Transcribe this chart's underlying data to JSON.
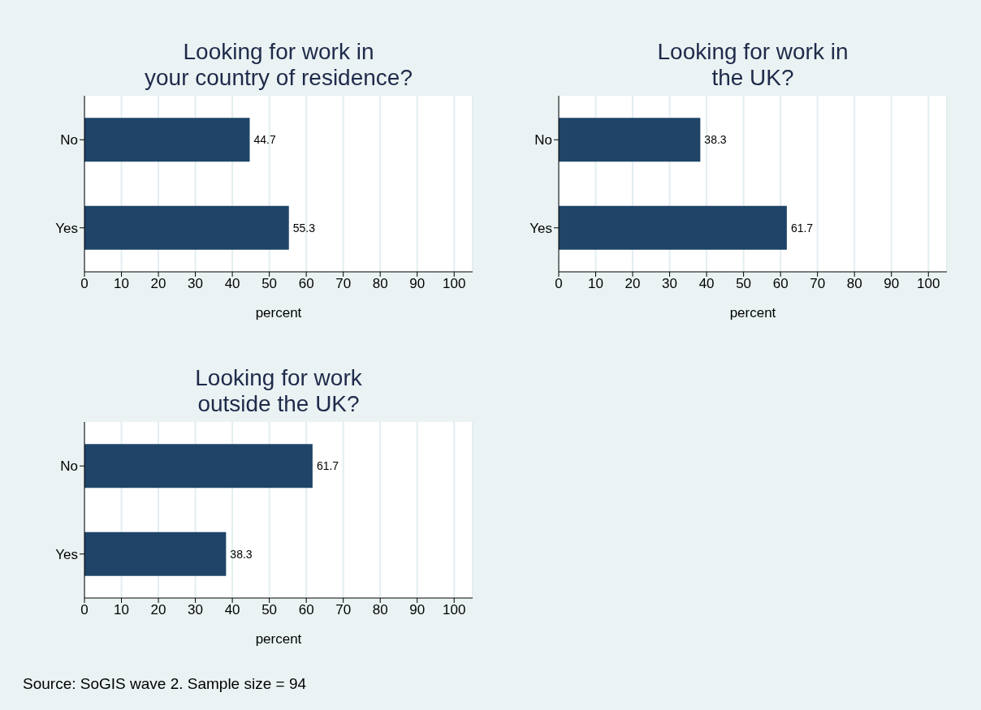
{
  "chart_data": [
    {
      "type": "bar",
      "orientation": "horizontal",
      "title": "Looking for work in\nyour country of residence?",
      "xlabel": "percent",
      "categories": [
        "No",
        "Yes"
      ],
      "values": [
        44.7,
        55.3
      ],
      "color": "#1f4468",
      "xlim": [
        0,
        105
      ],
      "xticks": [
        0,
        10,
        20,
        30,
        40,
        50,
        60,
        70,
        80,
        90,
        100
      ],
      "grid": "x",
      "data_labels": true
    },
    {
      "type": "bar",
      "orientation": "horizontal",
      "title": "Looking for work in\nthe UK?",
      "xlabel": "percent",
      "categories": [
        "No",
        "Yes"
      ],
      "values": [
        38.3,
        61.7
      ],
      "color": "#1f4468",
      "xlim": [
        0,
        105
      ],
      "xticks": [
        0,
        10,
        20,
        30,
        40,
        50,
        60,
        70,
        80,
        90,
        100
      ],
      "grid": "x",
      "data_labels": true
    },
    {
      "type": "bar",
      "orientation": "horizontal",
      "title": "Looking for work\noutside the UK?",
      "xlabel": "percent",
      "categories": [
        "No",
        "Yes"
      ],
      "values": [
        61.7,
        38.3
      ],
      "color": "#1f4468",
      "xlim": [
        0,
        105
      ],
      "xticks": [
        0,
        10,
        20,
        30,
        40,
        50,
        60,
        70,
        80,
        90,
        100
      ],
      "grid": "x",
      "data_labels": true,
      "annotations": [
        "Source: SoGIS wave 2. Sample size = 94"
      ]
    }
  ]
}
